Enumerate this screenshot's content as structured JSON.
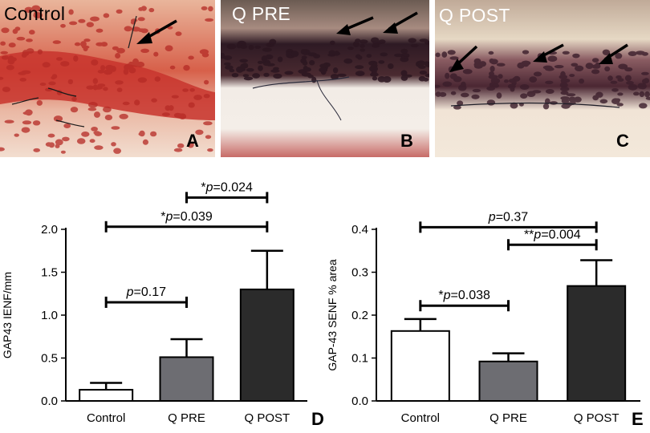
{
  "micrographs": [
    {
      "title": "Control",
      "letter": "A",
      "title_color": "#000000"
    },
    {
      "title": "Q PRE",
      "letter": "B",
      "title_color": "#ffffff"
    },
    {
      "title": "Q POST",
      "letter": "C",
      "title_color": "#ffffff"
    }
  ],
  "colors": {
    "control_bar": "#ffffff",
    "qpre_bar": "#6d6d72",
    "qpost_bar": "#2b2b2b",
    "tissue_red": "#c8342d",
    "tissue_purple": "#3b1e2b",
    "background_cream": "#f3ead8"
  },
  "chart_data": [
    {
      "type": "bar",
      "panel_letter": "D",
      "categories": [
        "Control",
        "Q PRE",
        "Q POST"
      ],
      "values": [
        0.13,
        0.51,
        1.3
      ],
      "errors": [
        0.08,
        0.21,
        0.45
      ],
      "ylabel": "GAP43 IENF/mm",
      "ylim": [
        0,
        2.0
      ],
      "yticks": [
        "0.0",
        "0.5",
        "1.0",
        "1.5",
        "2.0"
      ],
      "ytick_values": [
        0,
        0.5,
        1.0,
        1.5,
        2.0
      ],
      "significance": [
        {
          "from": 0,
          "to": 1,
          "level": 1.15,
          "stars": "",
          "label": "=0.17"
        },
        {
          "from": 0,
          "to": 2,
          "level": 2.03,
          "stars": "*",
          "label": "=0.039"
        },
        {
          "from": 1,
          "to": 2,
          "level": 2.37,
          "stars": "*",
          "label": "=0.024"
        }
      ]
    },
    {
      "type": "bar",
      "panel_letter": "E",
      "categories": [
        "Control",
        "Q PRE",
        "Q POST"
      ],
      "values": [
        0.163,
        0.092,
        0.268
      ],
      "errors": [
        0.028,
        0.019,
        0.06
      ],
      "ylabel": "GAP-43 SENF % area",
      "ylim": [
        0,
        0.4
      ],
      "yticks": [
        "0.0",
        "0.1",
        "0.2",
        "0.3",
        "0.4"
      ],
      "ytick_values": [
        0,
        0.1,
        0.2,
        0.3,
        0.4
      ],
      "significance": [
        {
          "from": 0,
          "to": 1,
          "level": 0.222,
          "stars": "*",
          "label": "=0.038"
        },
        {
          "from": 1,
          "to": 2,
          "level": 0.364,
          "stars": "**",
          "label": "=0.004"
        },
        {
          "from": 0,
          "to": 2,
          "level": 0.405,
          "stars": "",
          "label": "=0.37"
        }
      ]
    }
  ]
}
